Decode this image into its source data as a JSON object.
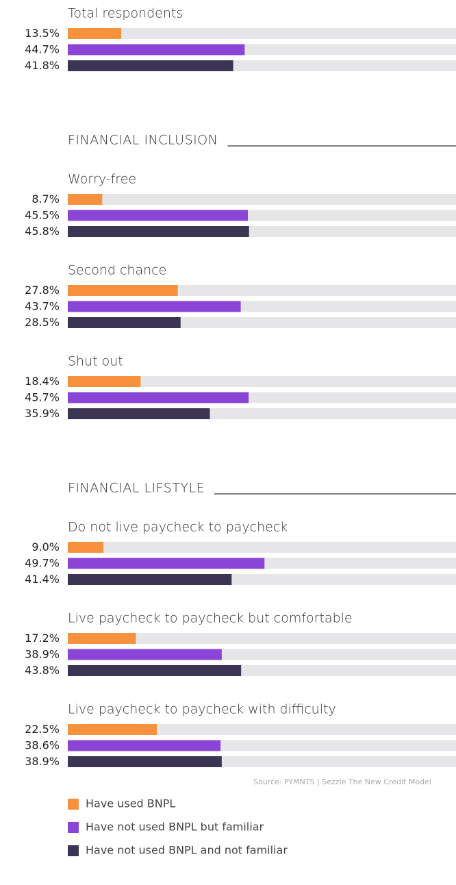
{
  "chart_data": {
    "type": "bar",
    "xlim": [
      0,
      100
    ],
    "series": [
      {
        "name": "Have used BNPL",
        "color": "#f7913d"
      },
      {
        "name": "Have not used BNPL but familiar",
        "color": "#8a45d6"
      },
      {
        "name": "Have not used BNPL and not familiar",
        "color": "#3b3452"
      }
    ],
    "groups": [
      {
        "label": "Total respondents",
        "values": [
          13.5,
          44.7,
          41.8
        ],
        "value_labels": [
          "13.5%",
          "44.7%",
          "41.8%"
        ]
      }
    ],
    "sections": [
      {
        "title": "FINANCIAL INCLUSION",
        "groups": [
          {
            "label": "Worry-free",
            "values": [
              8.7,
              45.5,
              45.8
            ],
            "value_labels": [
              "8.7%",
              "45.5%",
              "45.8%"
            ]
          },
          {
            "label": "Second chance",
            "values": [
              27.8,
              43.7,
              28.5
            ],
            "value_labels": [
              "27.8%",
              "43.7%",
              "28.5%"
            ]
          },
          {
            "label": "Shut out",
            "values": [
              18.4,
              45.7,
              35.9
            ],
            "value_labels": [
              "18.4%",
              "45.7%",
              "35.9%"
            ]
          }
        ]
      },
      {
        "title": "FINANCIAL LIFSTYLE",
        "groups": [
          {
            "label": "Do not live paycheck to paycheck",
            "values": [
              9.0,
              49.7,
              41.4
            ],
            "value_labels": [
              "9.0%",
              "49.7%",
              "41.4%"
            ]
          },
          {
            "label": "Live paycheck to paycheck but comfortable",
            "values": [
              17.2,
              38.9,
              43.8
            ],
            "value_labels": [
              "17.2%",
              "38.9%",
              "43.8%"
            ]
          },
          {
            "label": "Live paycheck to paycheck with difficulty",
            "values": [
              22.5,
              38.6,
              38.9
            ],
            "value_labels": [
              "22.5%",
              "38.6%",
              "38.9%"
            ]
          }
        ]
      }
    ],
    "source": "Source: PYMNTS | Sezzle    The New Credit Model"
  }
}
